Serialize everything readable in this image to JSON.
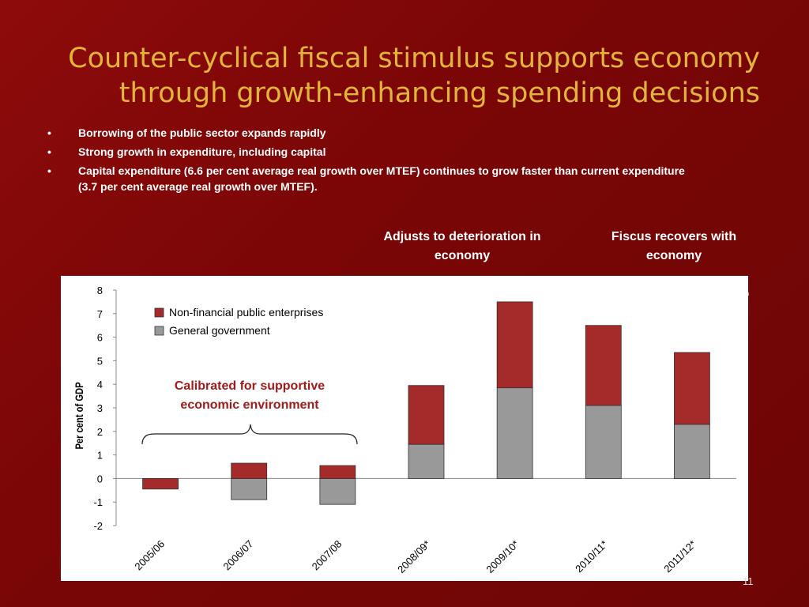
{
  "slide": {
    "title_line1": "Counter-cyclical fiscal stimulus supports economy",
    "title_line2": "through growth-enhancing spending decisions",
    "bullets": [
      "Borrowing of the public sector expands rapidly",
      "Strong growth in expenditure, including capital",
      "Capital expenditure (6.6 per cent average real growth over MTEF) continues to grow faster than current expenditure (3.7 per cent average real growth over MTEF)."
    ],
    "callout_1": "Adjusts to deterioration in economy",
    "callout_2": "Fiscus recovers with economy",
    "page_number": "11"
  },
  "colors": {
    "background": "#7a0606",
    "title": "#e2b43c",
    "nfpe": "#a52a2a",
    "general_government": "#999999",
    "chart_annotation": "#a31a1a"
  },
  "chart_data": {
    "type": "bar",
    "stacked": true,
    "categories": [
      "2005/06",
      "2006/07",
      "2007/08",
      "2008/09*",
      "2009/10*",
      "2010/11*",
      "2011/12*"
    ],
    "series": [
      {
        "name": "General government",
        "values": [
          0.0,
          -0.9,
          -1.1,
          1.45,
          3.85,
          3.1,
          2.3
        ],
        "color": "#999999"
      },
      {
        "name": "Non-financial public enterprises",
        "values": [
          -0.45,
          0.65,
          0.55,
          2.5,
          3.65,
          3.4,
          3.05
        ],
        "color": "#a52a2a"
      }
    ],
    "ylabel": "Per cent of GDP",
    "xlabel": "",
    "ylim": [
      -2,
      8
    ],
    "yticks": [
      -2,
      -1,
      0,
      1,
      2,
      3,
      4,
      5,
      6,
      7,
      8
    ],
    "legend_position": "top-left",
    "legend_order": [
      "Non-financial public enterprises",
      "General government"
    ],
    "annotation": "Calibrated for supportive economic environment"
  }
}
